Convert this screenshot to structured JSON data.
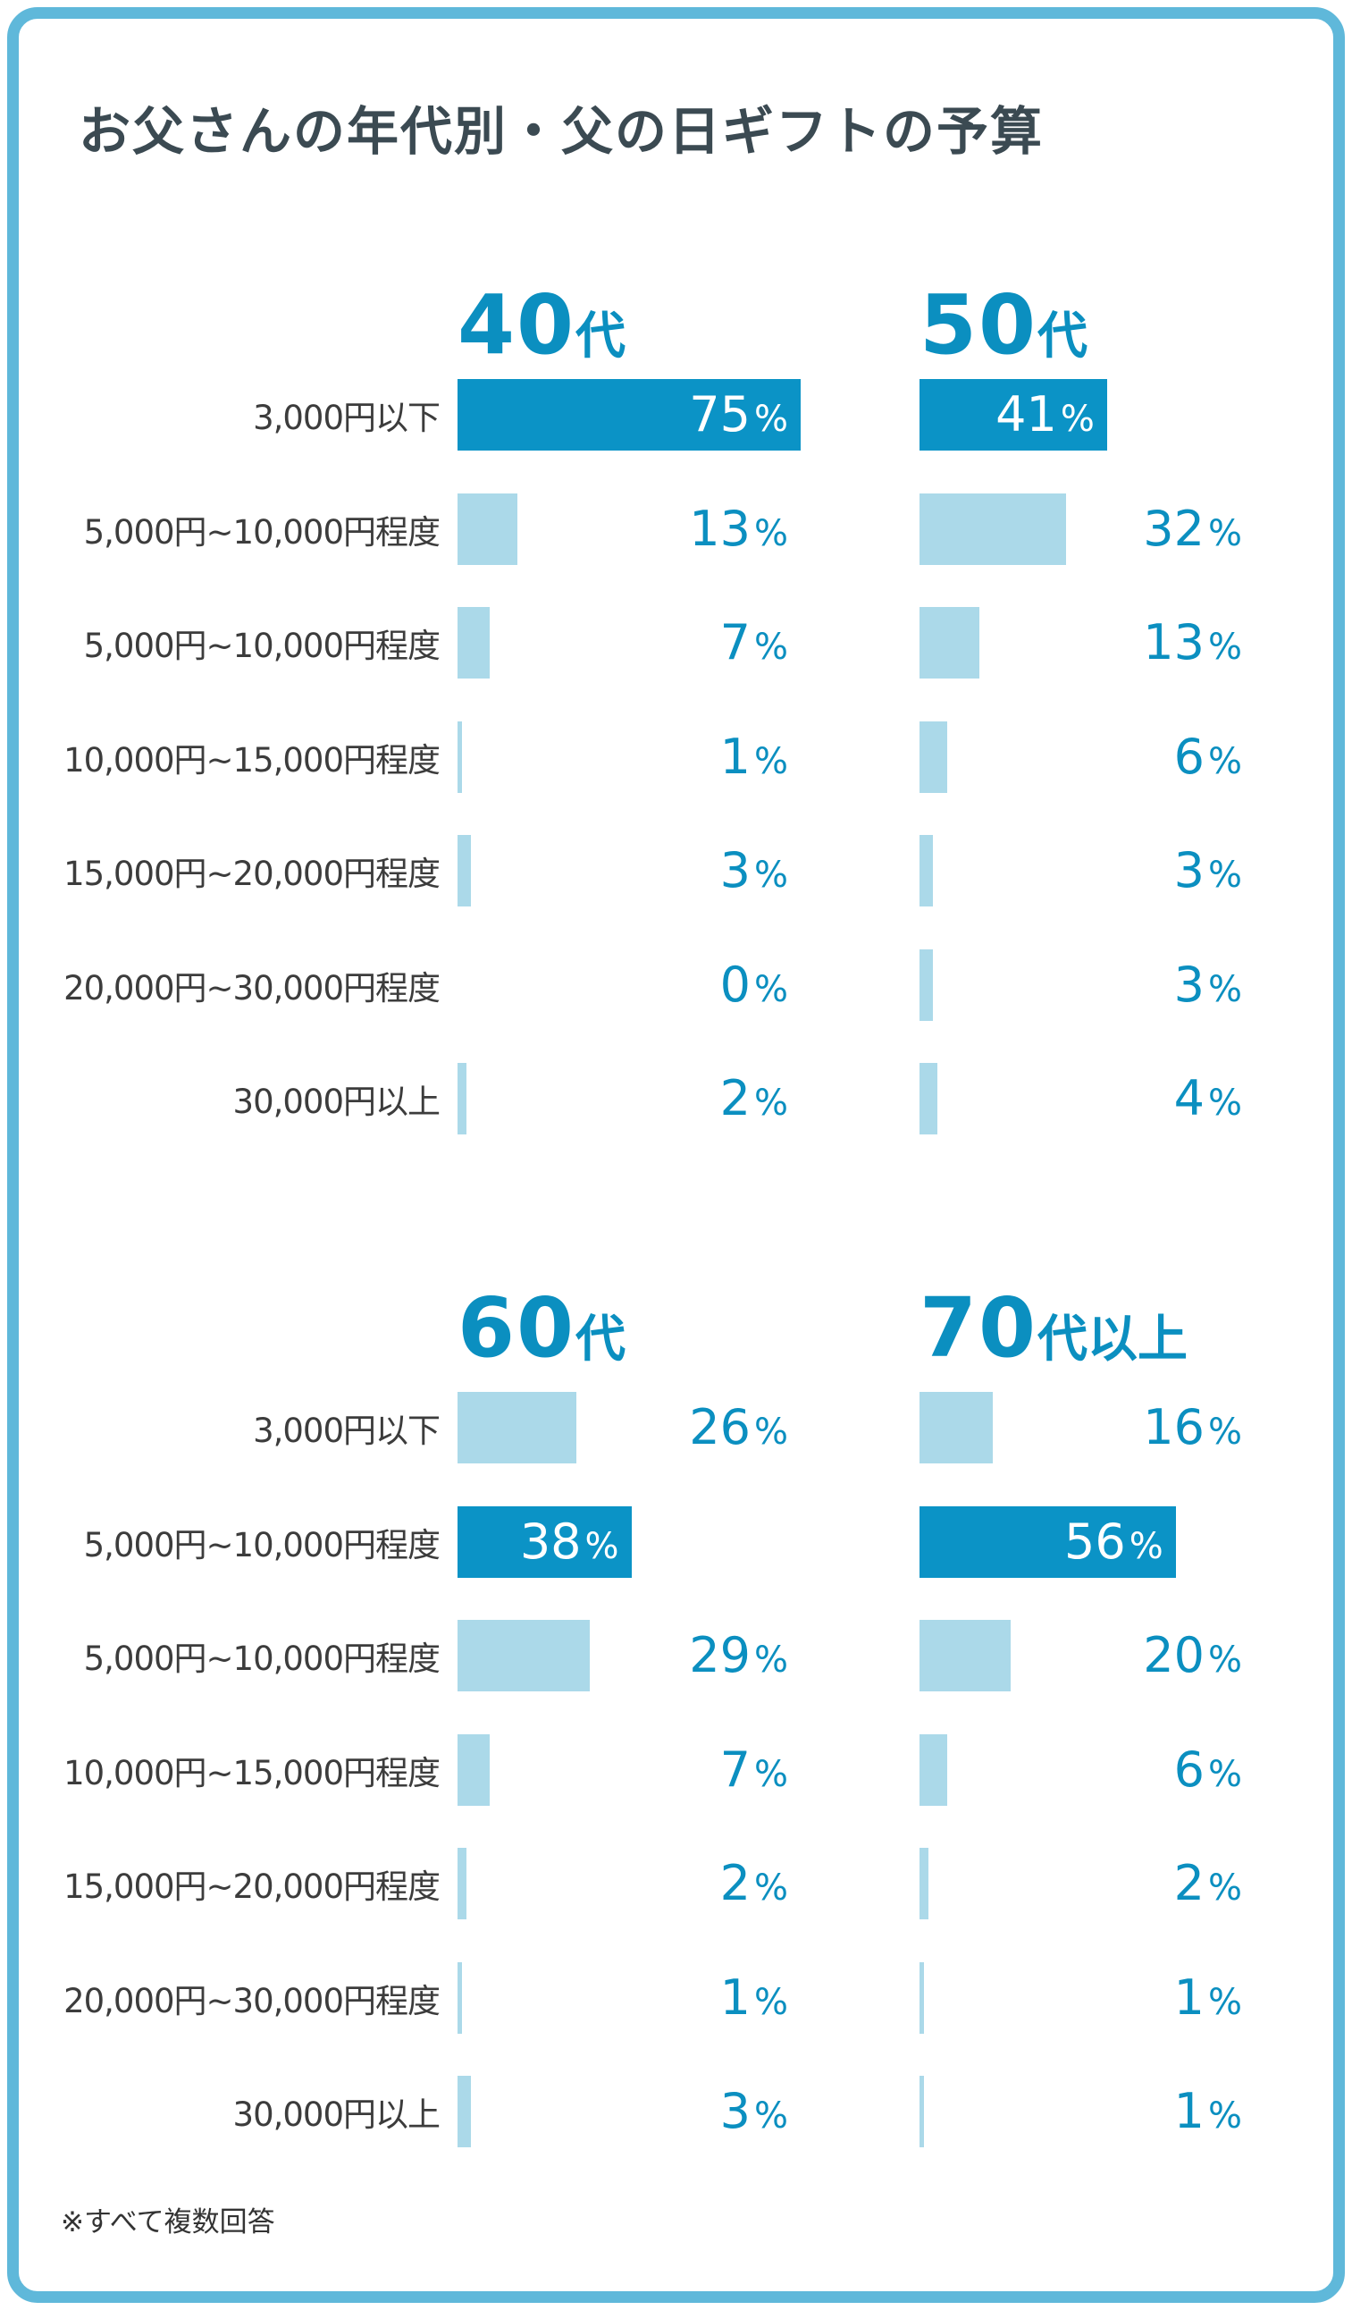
{
  "title": "お父さんの年代別・父の日ギフトの予算",
  "note": "※すべて複数回答",
  "colors": {
    "frame": "#5fb8da",
    "bar_light": "#abd9e9",
    "bar_dark": "#0b93c6",
    "accent_text": "#0b8fc0"
  },
  "chart_data": [
    {
      "type": "bar",
      "orientation": "horizontal",
      "panel": "40代",
      "heading_number": "40",
      "heading_suffix": "代",
      "categories": [
        "3,000円以下",
        "5,000円~10,000円程度",
        "5,000円~10,000円程度",
        "10,000円~15,000円程度",
        "15,000円~20,000円程度",
        "20,000円~30,000円程度",
        "30,000円以上"
      ],
      "values": [
        75,
        13,
        7,
        1,
        3,
        0,
        2
      ],
      "unit": "%",
      "highlight_index": 0
    },
    {
      "type": "bar",
      "orientation": "horizontal",
      "panel": "50代",
      "heading_number": "50",
      "heading_suffix": "代",
      "categories": [
        "3,000円以下",
        "5,000円~10,000円程度",
        "5,000円~10,000円程度",
        "10,000円~15,000円程度",
        "15,000円~20,000円程度",
        "20,000円~30,000円程度",
        "30,000円以上"
      ],
      "values": [
        41,
        32,
        13,
        6,
        3,
        3,
        4
      ],
      "unit": "%",
      "highlight_index": 0
    },
    {
      "type": "bar",
      "orientation": "horizontal",
      "panel": "60代",
      "heading_number": "60",
      "heading_suffix": "代",
      "categories": [
        "3,000円以下",
        "5,000円~10,000円程度",
        "5,000円~10,000円程度",
        "10,000円~15,000円程度",
        "15,000円~20,000円程度",
        "20,000円~30,000円程度",
        "30,000円以上"
      ],
      "values": [
        26,
        38,
        29,
        7,
        2,
        1,
        3
      ],
      "unit": "%",
      "highlight_index": 1
    },
    {
      "type": "bar",
      "orientation": "horizontal",
      "panel": "70代以上",
      "heading_number": "70",
      "heading_suffix": "代以上",
      "categories": [
        "3,000円以下",
        "5,000円~10,000円程度",
        "5,000円~10,000円程度",
        "10,000円~15,000円程度",
        "15,000円~20,000円程度",
        "20,000円~30,000円程度",
        "30,000円以上"
      ],
      "values": [
        16,
        56,
        20,
        6,
        2,
        1,
        1
      ],
      "unit": "%",
      "highlight_index": 1
    }
  ]
}
